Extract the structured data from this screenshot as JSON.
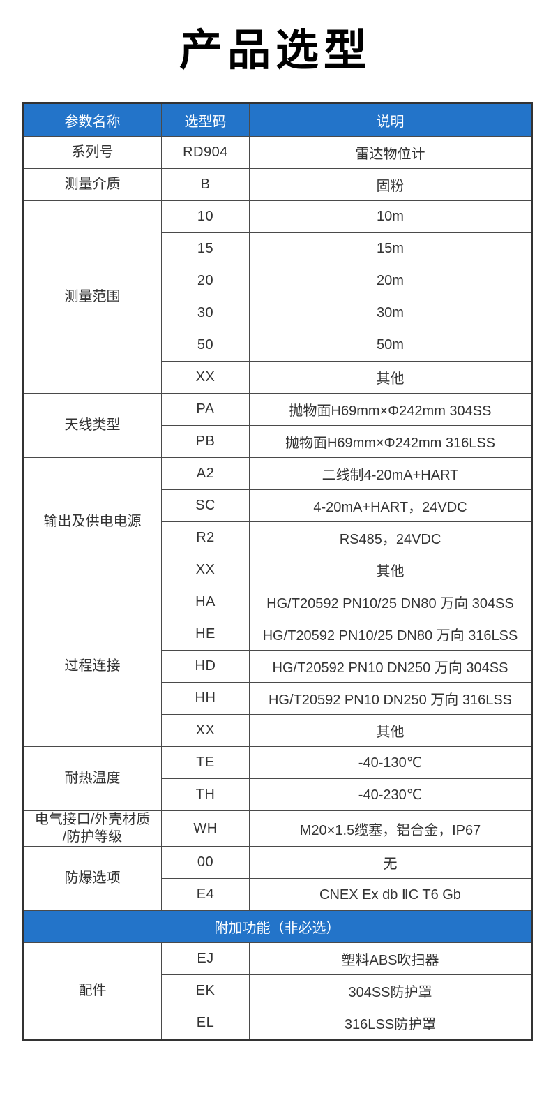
{
  "page": {
    "title": "产品选型"
  },
  "colors": {
    "accent_blue": "#2374c9",
    "body_text": "#333333",
    "border": "#4a4a4a",
    "header_text": "#ffffff"
  },
  "table": {
    "headers": [
      "参数名称",
      "选型码",
      "说明"
    ],
    "sections": [
      {
        "param": "系列号",
        "options": [
          {
            "code": "RD904",
            "desc": "雷达物位计"
          }
        ]
      },
      {
        "param": "测量介质",
        "options": [
          {
            "code": "B",
            "desc": "固粉"
          }
        ]
      },
      {
        "param": "测量范围",
        "options": [
          {
            "code": "10",
            "desc": "10m"
          },
          {
            "code": "15",
            "desc": "15m"
          },
          {
            "code": "20",
            "desc": "20m"
          },
          {
            "code": "30",
            "desc": "30m"
          },
          {
            "code": "50",
            "desc": "50m"
          },
          {
            "code": "XX",
            "desc": "其他"
          }
        ]
      },
      {
        "param": "天线类型",
        "options": [
          {
            "code": "PA",
            "desc": "抛物面H69mm×Φ242mm 304SS"
          },
          {
            "code": "PB",
            "desc": "抛物面H69mm×Φ242mm 316LSS"
          }
        ]
      },
      {
        "param": "输出及供电电源",
        "options": [
          {
            "code": "A2",
            "desc": "二线制4-20mA+HART"
          },
          {
            "code": "SC",
            "desc": "4-20mA+HART，24VDC"
          },
          {
            "code": "R2",
            "desc": "RS485，24VDC"
          },
          {
            "code": "XX",
            "desc": "其他"
          }
        ]
      },
      {
        "param": "过程连接",
        "options": [
          {
            "code": "HA",
            "desc": "HG/T20592 PN10/25 DN80 万向 304SS"
          },
          {
            "code": "HE",
            "desc": "HG/T20592 PN10/25 DN80 万向 316LSS"
          },
          {
            "code": "HD",
            "desc": "HG/T20592 PN10 DN250 万向 304SS"
          },
          {
            "code": "HH",
            "desc": "HG/T20592 PN10 DN250 万向 316LSS"
          },
          {
            "code": "XX",
            "desc": "其他"
          }
        ]
      },
      {
        "param": "耐热温度",
        "options": [
          {
            "code": "TE",
            "desc": "-40-130℃"
          },
          {
            "code": "TH",
            "desc": "-40-230℃"
          }
        ]
      },
      {
        "param": [
          "电气接口/外壳材质",
          "/防护等级"
        ],
        "options": [
          {
            "code": "WH",
            "desc": "M20×1.5缆塞，铝合金，IP67"
          }
        ]
      },
      {
        "param": "防爆选项",
        "options": [
          {
            "code": "00",
            "desc": "无"
          },
          {
            "code": "E4",
            "desc": "CNEX Ex db ⅡC T6 Gb"
          }
        ]
      }
    ],
    "extra_banner": "附加功能（非必选）",
    "extra_sections": [
      {
        "param": "配件",
        "options": [
          {
            "code": "EJ",
            "desc": "塑料ABS吹扫器"
          },
          {
            "code": "EK",
            "desc": "304SS防护罩"
          },
          {
            "code": "EL",
            "desc": "316LSS防护罩"
          }
        ]
      }
    ]
  }
}
